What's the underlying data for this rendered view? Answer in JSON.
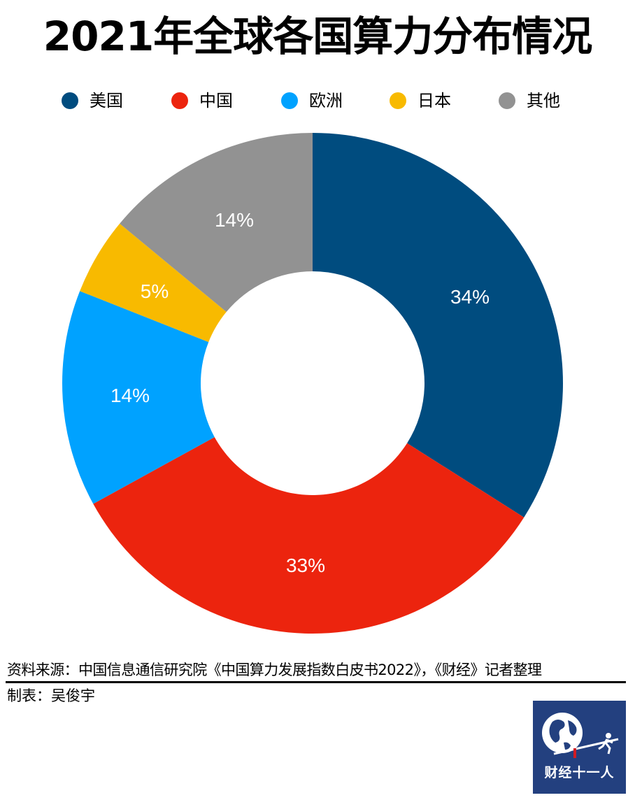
{
  "title": "2021年全球各国算力分布情况",
  "legend": [
    {
      "label": "美国",
      "color": "#004c7f"
    },
    {
      "label": "中国",
      "color": "#ec240e"
    },
    {
      "label": "欧洲",
      "color": "#00a2ff"
    },
    {
      "label": "日本",
      "color": "#f8ba00"
    },
    {
      "label": "其他",
      "color": "#929292"
    }
  ],
  "chart_data": {
    "type": "pie",
    "subtype": "donut",
    "title": "2021年全球各国算力分布情况",
    "categories": [
      "美国",
      "中国",
      "欧洲",
      "日本",
      "其他"
    ],
    "values": [
      34,
      33,
      14,
      5,
      14
    ],
    "unit": "%",
    "labels": [
      "34%",
      "33%",
      "14%",
      "5%",
      "14%"
    ],
    "colors": [
      "#004c7f",
      "#ec240e",
      "#00a2ff",
      "#f8ba00",
      "#929292"
    ],
    "start_angle": "12 o'clock",
    "direction": "clockwise",
    "legend_position": "top"
  },
  "footer": {
    "source": "资料来源：中国信息通信研究院《中国算力发展指数白皮书2022》，《财经》记者整理",
    "maker": "制表：吴俊宇"
  },
  "logo": {
    "text": "财经十一人"
  }
}
